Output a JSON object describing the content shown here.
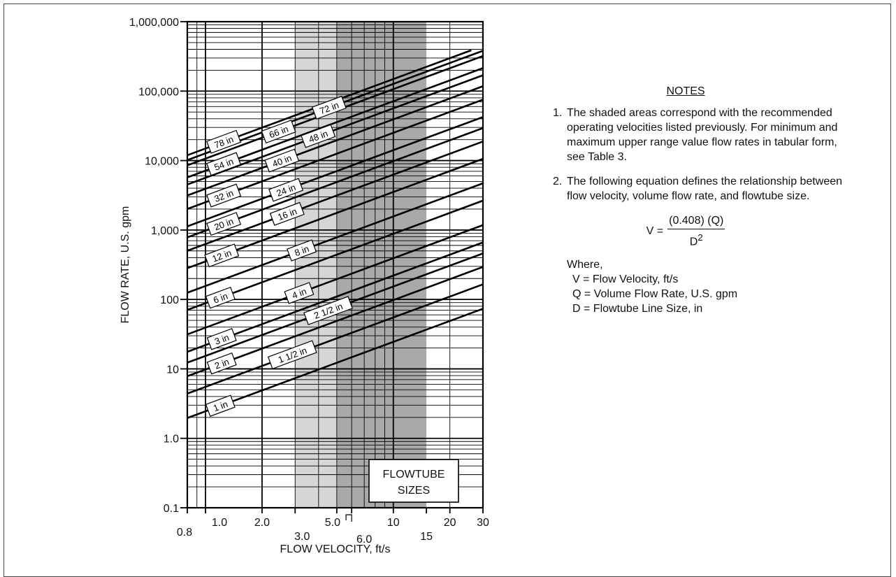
{
  "chart_data": {
    "type": "line",
    "title": "",
    "xlabel": "FLOW VELOCITY, ft/s",
    "ylabel": "FLOW RATE, U.S. gpm",
    "x_scale": "log",
    "y_scale": "log",
    "xlim": [
      0.8,
      30
    ],
    "ylim": [
      0.1,
      1000000
    ],
    "x_tick_labels": [
      {
        "value": 0.8,
        "label": "0.8"
      },
      {
        "value": 1.0,
        "label": "1.0"
      },
      {
        "value": 2.0,
        "label": "2.0"
      },
      {
        "value": 3.0,
        "label": "3.0"
      },
      {
        "value": 5.0,
        "label": "5.0"
      },
      {
        "value": 6.0,
        "label": "6.0"
      },
      {
        "value": 10,
        "label": "10"
      },
      {
        "value": 15,
        "label": "15"
      },
      {
        "value": 20,
        "label": "20"
      },
      {
        "value": 30,
        "label": "30"
      }
    ],
    "y_tick_labels": [
      {
        "value": 0.1,
        "label": "0.1"
      },
      {
        "value": 1,
        "label": "1.0"
      },
      {
        "value": 10,
        "label": "10"
      },
      {
        "value": 100,
        "label": "100"
      },
      {
        "value": 1000,
        "label": "1,000"
      },
      {
        "value": 10000,
        "label": "10,000"
      },
      {
        "value": 100000,
        "label": "100,000"
      },
      {
        "value": 1000000,
        "label": "1,000,000"
      }
    ],
    "grid": true,
    "shaded_regions": [
      {
        "x0": 3.0,
        "x1": 5.0,
        "color": "#d6d6d6"
      },
      {
        "x0": 5.0,
        "x1": 10,
        "color": "#a9a9a9"
      },
      {
        "x0": 10,
        "x1": 15,
        "color": "#a9a9a9"
      }
    ],
    "series": [
      {
        "name": "1 in",
        "diameter": 1,
        "x": [
          0.8,
          30
        ],
        "y": [
          1.96,
          73.5
        ]
      },
      {
        "name": "1 1/2 in",
        "diameter": 1.5,
        "x": [
          0.8,
          30
        ],
        "y": [
          4.41,
          165
        ]
      },
      {
        "name": "2 in",
        "diameter": 2,
        "x": [
          0.8,
          30
        ],
        "y": [
          7.84,
          294
        ]
      },
      {
        "name": "2 1/2 in",
        "diameter": 2.5,
        "x": [
          0.8,
          30
        ],
        "y": [
          12.3,
          460
        ]
      },
      {
        "name": "3 in",
        "diameter": 3,
        "x": [
          0.8,
          30
        ],
        "y": [
          17.6,
          662
        ]
      },
      {
        "name": "4 in",
        "diameter": 4,
        "x": [
          0.8,
          30
        ],
        "y": [
          31.4,
          1176
        ]
      },
      {
        "name": "6 in",
        "diameter": 6,
        "x": [
          0.8,
          30
        ],
        "y": [
          70.6,
          2647
        ]
      },
      {
        "name": "8 in",
        "diameter": 8,
        "x": [
          0.8,
          30
        ],
        "y": [
          125,
          4706
        ]
      },
      {
        "name": "12 in",
        "diameter": 12,
        "x": [
          0.8,
          30
        ],
        "y": [
          282,
          10588
        ]
      },
      {
        "name": "16 in",
        "diameter": 16,
        "x": [
          0.8,
          30
        ],
        "y": [
          502,
          18824
        ]
      },
      {
        "name": "20 in",
        "diameter": 20,
        "x": [
          0.8,
          30
        ],
        "y": [
          784,
          29412
        ]
      },
      {
        "name": "24 in",
        "diameter": 24,
        "x": [
          0.8,
          30
        ],
        "y": [
          1129,
          42353
        ]
      },
      {
        "name": "32 in",
        "diameter": 32,
        "x": [
          0.8,
          30
        ],
        "y": [
          2008,
          75294
        ]
      },
      {
        "name": "40 in",
        "diameter": 40,
        "x": [
          0.8,
          30
        ],
        "y": [
          3137,
          117647
        ]
      },
      {
        "name": "48 in",
        "diameter": 48,
        "x": [
          0.8,
          30
        ],
        "y": [
          4518,
          169412
        ]
      },
      {
        "name": "54 in",
        "diameter": 54,
        "x": [
          0.8,
          30
        ],
        "y": [
          5718,
          214412
        ]
      },
      {
        "name": "66 in",
        "diameter": 66,
        "x": [
          0.8,
          30
        ],
        "y": [
          8541,
          320294
        ]
      },
      {
        "name": "72 in",
        "diameter": 72,
        "x": [
          0.8,
          30
        ],
        "y": [
          10165,
          381176
        ]
      },
      {
        "name": "78 in",
        "diameter": 78,
        "x": [
          0.8,
          30
        ],
        "y": [
          11929,
          447353
        ]
      }
    ],
    "legend_box": {
      "line1": "FLOWTUBE",
      "line2": "SIZES",
      "placement": "bottom-right"
    }
  },
  "notes": {
    "title": "NOTES",
    "note1_number": "1.",
    "note1_text": "The shaded areas correspond with the recommended operating velocities listed previously. For minimum and maximum upper range value flow rates in tabular form, see Table 3.",
    "note2_number": "2.",
    "note2_text": "The following equation defines the relationship between flow velocity, volume flow rate, and flowtube size.",
    "formula_lhs": "V =",
    "formula_numerator": "(0.408) (Q)",
    "formula_denominator_base": "D",
    "formula_denominator_exp": "2",
    "where_label": "Where,",
    "where_items": [
      "V = Flow Velocity,  ft/s",
      "Q = Volume Flow Rate,  U.S. gpm",
      "D = Flowtube Line Size,  in"
    ]
  }
}
